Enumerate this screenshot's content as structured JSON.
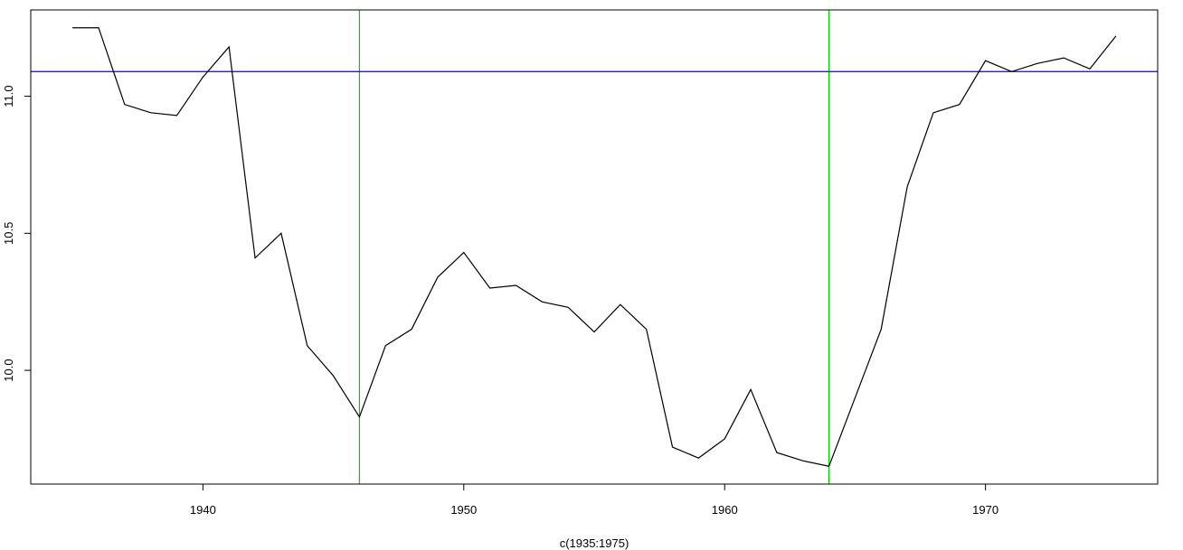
{
  "chart_data": {
    "type": "line",
    "title": "",
    "xlabel": "c(1935:1975)",
    "ylabel": "",
    "xlim": [
      1933.4,
      1976.6
    ],
    "ylim": [
      9.585,
      11.315
    ],
    "x_ticks": [
      1940,
      1950,
      1960,
      1970
    ],
    "x_tick_labels": [
      "1940",
      "1950",
      "1960",
      "1970"
    ],
    "y_ticks": [
      10.0,
      10.5,
      11.0
    ],
    "y_tick_labels": [
      "10.0",
      "10.5",
      "11.0"
    ],
    "grid": false,
    "series": [
      {
        "color": "#000000",
        "x": [
          1935,
          1936,
          1937,
          1938,
          1939,
          1940,
          1941,
          1942,
          1943,
          1944,
          1945,
          1946,
          1947,
          1948,
          1949,
          1950,
          1951,
          1952,
          1953,
          1954,
          1955,
          1956,
          1957,
          1958,
          1959,
          1960,
          1961,
          1962,
          1963,
          1964,
          1965,
          1966,
          1967,
          1968,
          1969,
          1970,
          1971,
          1972,
          1973,
          1974,
          1975
        ],
        "values": [
          11.25,
          11.25,
          10.97,
          10.94,
          10.93,
          11.07,
          11.18,
          10.41,
          10.5,
          10.09,
          9.98,
          9.83,
          10.09,
          10.15,
          10.34,
          10.43,
          10.3,
          10.31,
          10.25,
          10.23,
          10.14,
          10.24,
          10.15,
          9.72,
          9.68,
          9.75,
          9.93,
          9.7,
          9.67,
          9.65,
          9.9,
          10.15,
          10.67,
          10.94,
          10.97,
          11.13,
          11.09,
          11.12,
          11.14,
          11.1,
          11.22
        ]
      }
    ],
    "hlines": [
      {
        "y": 11.09,
        "color": "#0000ff"
      }
    ],
    "vlines": [
      {
        "x": 1946,
        "color": "#00cc00"
      },
      {
        "x": 1964,
        "color": "#00cc00"
      }
    ]
  }
}
